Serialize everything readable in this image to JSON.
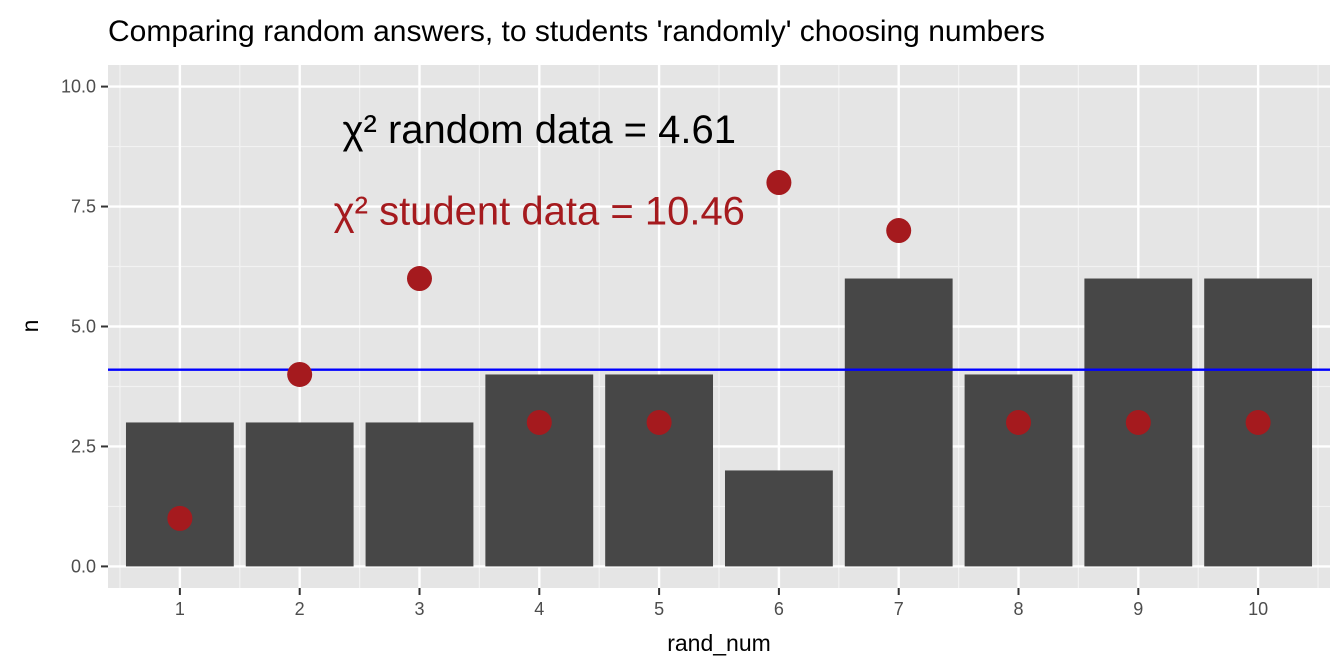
{
  "chart_data": {
    "type": "bar",
    "title": "Comparing random answers, to students 'randomly' choosing numbers",
    "xlabel": "rand_num",
    "ylabel": "n",
    "categories": [
      "1",
      "2",
      "3",
      "4",
      "5",
      "6",
      "7",
      "8",
      "9",
      "10"
    ],
    "series": [
      {
        "type": "bar",
        "values": [
          3,
          3,
          3,
          4,
          4,
          2,
          6,
          4,
          6,
          6
        ],
        "color": "#474747"
      },
      {
        "type": "scatter",
        "values": [
          1,
          4,
          6,
          3,
          3,
          8,
          7,
          3,
          3,
          3
        ],
        "color": "#a51a1e"
      }
    ],
    "hline": {
      "value": 4.1,
      "color": "#0000ff"
    },
    "ylim": [
      -0.45,
      10.45
    ],
    "yticks": [
      0,
      2.5,
      5,
      7.5,
      10
    ],
    "ytick_labels": [
      "0.0",
      "2.5",
      "5.0",
      "7.5",
      "10.0"
    ],
    "grid": true,
    "panel_background": "#e5e5e5",
    "annotations": [
      {
        "text": "χ² random data =  4.61",
        "x": 4,
        "y": 9.1,
        "color": "#000000"
      },
      {
        "text": "χ² student data = 10.46",
        "x": 4,
        "y": 7.4,
        "color": "#a51a1e"
      }
    ]
  }
}
